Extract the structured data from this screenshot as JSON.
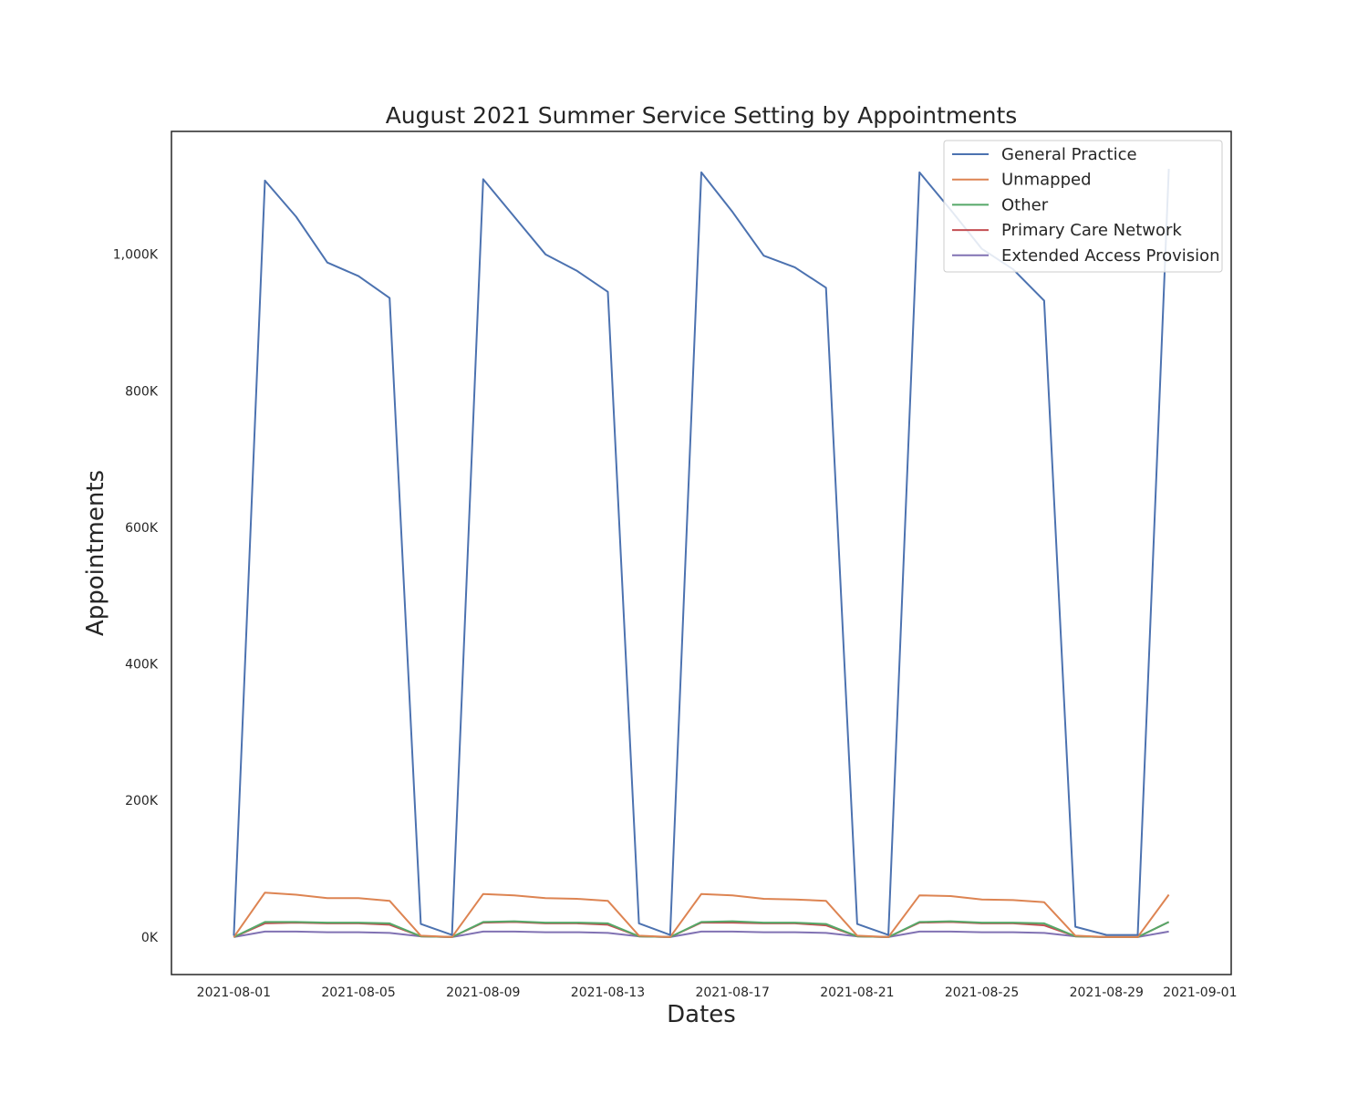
{
  "chart_data": {
    "type": "line",
    "title": "August 2021 Summer Service Setting by Appointments",
    "xlabel": "Dates",
    "ylabel": "Appointments",
    "x": [
      "2021-08-01",
      "2021-08-02",
      "2021-08-03",
      "2021-08-04",
      "2021-08-05",
      "2021-08-06",
      "2021-08-07",
      "2021-08-08",
      "2021-08-09",
      "2021-08-10",
      "2021-08-11",
      "2021-08-12",
      "2021-08-13",
      "2021-08-14",
      "2021-08-15",
      "2021-08-16",
      "2021-08-17",
      "2021-08-18",
      "2021-08-19",
      "2021-08-20",
      "2021-08-21",
      "2021-08-22",
      "2021-08-23",
      "2021-08-24",
      "2021-08-25",
      "2021-08-26",
      "2021-08-27",
      "2021-08-28",
      "2021-08-29",
      "2021-08-30",
      "2021-08-31"
    ],
    "xlim": [
      "2021-07-30",
      "2021-09-02"
    ],
    "ylim": [
      -55000,
      1180000
    ],
    "x_ticks": [
      "2021-08-01",
      "2021-08-05",
      "2021-08-09",
      "2021-08-13",
      "2021-08-17",
      "2021-08-21",
      "2021-08-25",
      "2021-08-29",
      "2021-09-01"
    ],
    "y_ticks": [
      0,
      200000,
      400000,
      600000,
      800000,
      1000000
    ],
    "y_tick_labels": [
      "0K",
      "200K",
      "400K",
      "600K",
      "800K",
      "1,000K"
    ],
    "grid": false,
    "legend_position": "top-right",
    "series": [
      {
        "name": "General Practice",
        "color": "#4c72b0",
        "values": [
          2000,
          1108000,
          1055000,
          988000,
          968000,
          936000,
          19000,
          3000,
          1110000,
          1055000,
          1000000,
          976000,
          945000,
          20000,
          3000,
          1120000,
          1062000,
          998000,
          981000,
          951000,
          19000,
          3000,
          1120000,
          1065000,
          1008000,
          978000,
          932000,
          15000,
          3000,
          3000,
          1125000
        ]
      },
      {
        "name": "Unmapped",
        "color": "#dd8452",
        "values": [
          0,
          65000,
          62000,
          57000,
          57000,
          53000,
          2000,
          0,
          63000,
          61000,
          57000,
          56000,
          53000,
          2000,
          0,
          63000,
          61000,
          56000,
          55000,
          53000,
          2000,
          0,
          61000,
          60000,
          55000,
          54000,
          51000,
          2000,
          0,
          0,
          62000
        ]
      },
      {
        "name": "Other",
        "color": "#55a868",
        "values": [
          0,
          22000,
          22000,
          21000,
          21000,
          20000,
          1000,
          0,
          22000,
          23000,
          21000,
          21000,
          20000,
          1000,
          0,
          22000,
          23000,
          21000,
          21000,
          19000,
          1000,
          0,
          22000,
          23000,
          21000,
          21000,
          20000,
          1000,
          0,
          0,
          22000
        ]
      },
      {
        "name": "Primary Care Network",
        "color": "#c44e52",
        "values": [
          0,
          20000,
          21000,
          20000,
          20000,
          18000,
          1000,
          0,
          21000,
          22000,
          20000,
          20000,
          18000,
          1000,
          0,
          21000,
          21000,
          20000,
          20000,
          17000,
          1000,
          0,
          21000,
          22000,
          20000,
          20000,
          17000,
          1000,
          0,
          0,
          22000
        ]
      },
      {
        "name": "Extended Access Provision",
        "color": "#8172b3",
        "values": [
          0,
          8000,
          8000,
          7000,
          7000,
          6000,
          1000,
          0,
          8000,
          8000,
          7000,
          7000,
          6000,
          1000,
          0,
          8000,
          8000,
          7000,
          7000,
          6000,
          1000,
          0,
          8000,
          8000,
          7000,
          7000,
          6000,
          1000,
          0,
          0,
          8000
        ]
      }
    ]
  }
}
